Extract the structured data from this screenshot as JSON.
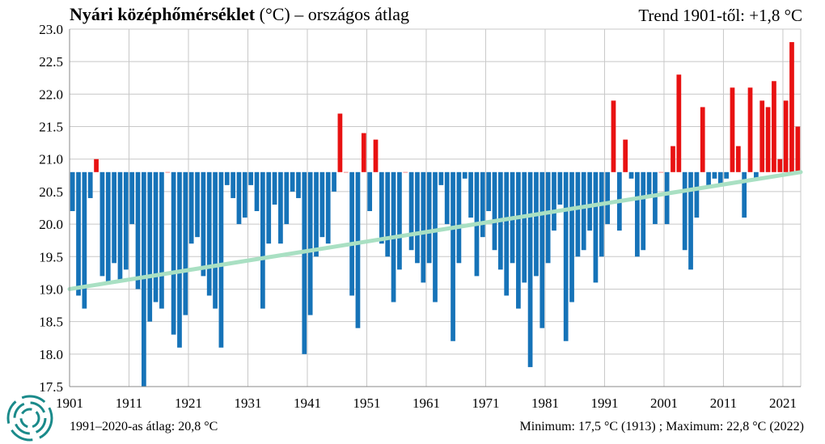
{
  "header": {
    "title_bold": "Nyári középhőmérséklet",
    "title_rest": " (°C) – országos átlag",
    "trend": "Trend 1901-től: +1,8 °C"
  },
  "footer": {
    "baseline_note": "1991–2020-as átlag:  20,8 °C",
    "minmax_note": "Minimum:  17,5 °C (1913)  ; Maximum:  22,8 °C (2022)"
  },
  "chart_data": {
    "type": "bar",
    "title": "Nyári középhőmérséklet (°C) – országos átlag",
    "baseline": 20.8,
    "ylim": [
      17.5,
      23.0
    ],
    "yticks": [
      "17.5",
      "18.0",
      "18.5",
      "19.0",
      "19.5",
      "20.0",
      "20.5",
      "21.0",
      "21.5",
      "22.0",
      "22.5",
      "23.0"
    ],
    "xticks": [
      "1901",
      "1911",
      "1921",
      "1931",
      "1941",
      "1951",
      "1961",
      "1971",
      "1981",
      "1991",
      "2001",
      "2011",
      "2021"
    ],
    "years_range": [
      1901,
      2023
    ],
    "values": [
      20.2,
      18.9,
      18.7,
      20.4,
      21.0,
      19.2,
      19.1,
      19.4,
      19.1,
      19.3,
      20.0,
      19.0,
      17.5,
      18.5,
      18.8,
      18.7,
      20.8,
      18.3,
      18.1,
      18.6,
      19.7,
      19.8,
      19.2,
      18.9,
      18.7,
      18.1,
      20.6,
      20.4,
      20.0,
      20.1,
      20.6,
      20.2,
      18.7,
      19.7,
      20.3,
      19.7,
      20.0,
      20.5,
      20.4,
      18.0,
      18.6,
      19.5,
      19.8,
      19.7,
      20.5,
      21.7,
      20.8,
      18.9,
      18.4,
      21.4,
      20.2,
      21.3,
      19.7,
      19.5,
      18.8,
      19.3,
      20.8,
      19.6,
      19.4,
      19.1,
      19.4,
      18.8,
      20.6,
      20.0,
      18.2,
      19.4,
      20.7,
      20.1,
      19.2,
      19.8,
      20.2,
      19.6,
      19.3,
      18.9,
      19.4,
      18.7,
      19.1,
      17.8,
      19.2,
      18.4,
      19.4,
      19.9,
      20.3,
      18.2,
      18.8,
      19.5,
      19.6,
      19.9,
      19.1,
      19.5,
      20.0,
      21.9,
      19.9,
      21.3,
      20.7,
      19.5,
      19.6,
      20.4,
      20.0,
      20.8,
      20.0,
      21.2,
      22.3,
      19.6,
      19.3,
      20.1,
      21.8,
      20.6,
      20.7,
      20.6,
      20.7,
      22.1,
      21.2,
      20.1,
      22.1,
      20.7,
      21.9,
      21.8,
      22.2,
      21.0,
      21.9,
      22.8,
      21.5
    ],
    "trend_line": {
      "start": [
        1901,
        19.0
      ],
      "end": [
        2023,
        20.8
      ]
    },
    "colors": {
      "above": "#e81212",
      "below": "#1673b8",
      "trend": "#a9e0c3",
      "grid": "#c8c8c8"
    },
    "grid": true,
    "legend": "none"
  }
}
